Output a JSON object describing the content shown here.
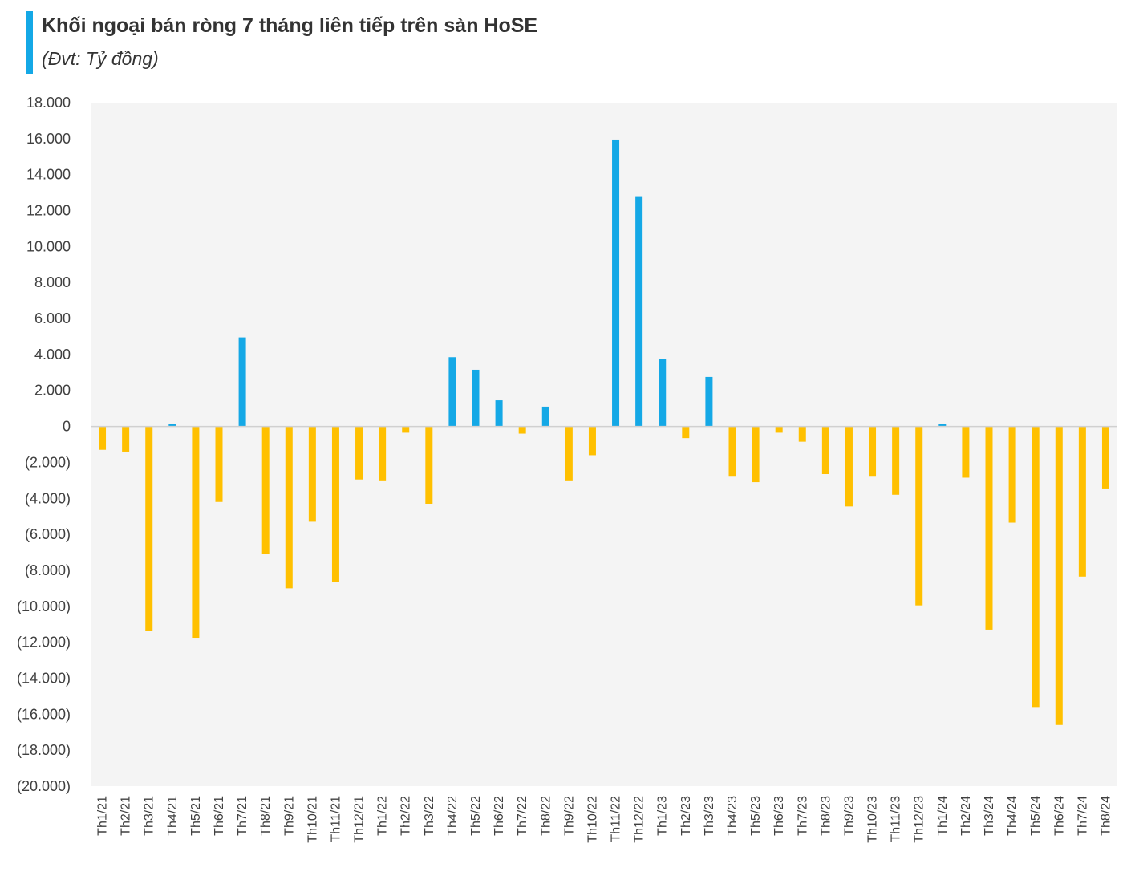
{
  "header": {
    "title": "Khối ngoại bán ròng 7 tháng liên tiếp trên sàn HoSE",
    "subtitle": "(Đvt: Tỷ đồng)"
  },
  "colors": {
    "positive": "#14a8e6",
    "negative": "#ffc000",
    "accent": "#14a8e6"
  },
  "chart_data": {
    "type": "bar",
    "title": "Khối ngoại bán ròng 7 tháng liên tiếp trên sàn HoSE",
    "subtitle": "(Đvt: Tỷ đồng)",
    "xlabel": "",
    "ylabel": "",
    "ylim": [
      -20000,
      18000
    ],
    "grid": false,
    "yticks": [
      18000,
      16000,
      14000,
      12000,
      10000,
      8000,
      6000,
      4000,
      2000,
      0,
      -2000,
      -4000,
      -6000,
      -8000,
      -10000,
      -12000,
      -14000,
      -16000,
      -18000,
      -20000
    ],
    "ytick_labels": [
      "18.000",
      "16.000",
      "14.000",
      "12.000",
      "10.000",
      "8.000",
      "6.000",
      "4.000",
      "2.000",
      "0",
      "(2.000)",
      "(4.000)",
      "(6.000)",
      "(8.000)",
      "(10.000)",
      "(12.000)",
      "(14.000)",
      "(16.000)",
      "(18.000)",
      "(20.000)"
    ],
    "categories": [
      "Th1/21",
      "Th2/21",
      "Th3/21",
      "Th4/21",
      "Th5/21",
      "Th6/21",
      "Th7/21",
      "Th8/21",
      "Th9/21",
      "Th10/21",
      "Th11/21",
      "Th12/21",
      "Th1/22",
      "Th2/22",
      "Th3/22",
      "Th4/22",
      "Th5/22",
      "Th6/22",
      "Th7/22",
      "Th8/22",
      "Th9/22",
      "Th10/22",
      "Th11/22",
      "Th12/22",
      "Th1/23",
      "Th2/23",
      "Th3/23",
      "Th4/23",
      "Th5/23",
      "Th6/23",
      "Th7/23",
      "Th8/23",
      "Th9/23",
      "Th10/23",
      "Th11/23",
      "Th12/23",
      "Th1/24",
      "Th2/24",
      "Th3/24",
      "Th4/24",
      "Th5/24",
      "Th6/24",
      "Th7/24",
      "Th8/24"
    ],
    "values": [
      -1300,
      -1400,
      -11350,
      150,
      -11750,
      -4200,
      4950,
      -7100,
      -9000,
      -5300,
      -8650,
      -2950,
      -3000,
      -350,
      -4300,
      3850,
      3150,
      1450,
      -400,
      1100,
      -3000,
      -1600,
      15950,
      12800,
      3750,
      -650,
      2750,
      -2750,
      -3100,
      -350,
      -850,
      -2650,
      -4450,
      -2750,
      -3800,
      -9950,
      150,
      -2850,
      -11300,
      -5350,
      -15600,
      -16600,
      -8350,
      -3450
    ]
  }
}
